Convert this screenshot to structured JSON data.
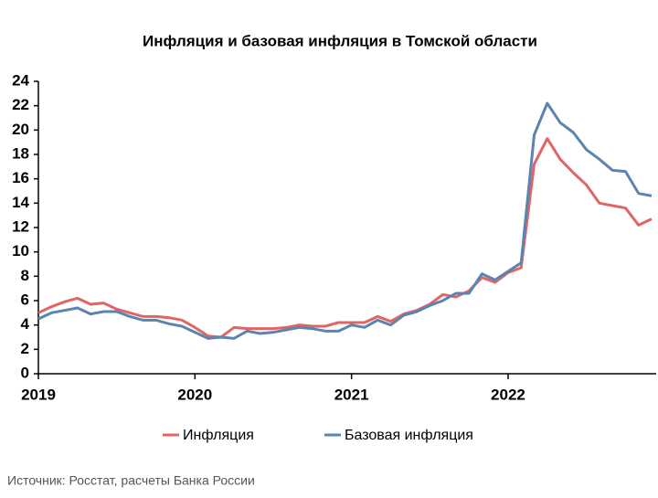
{
  "chart_data": {
    "type": "line",
    "title": "Инфляция и базовая инфляция в Томской области",
    "source": "Источник: Росстат, расчеты Банка России",
    "categories": [
      "2019",
      null,
      null,
      null,
      null,
      null,
      null,
      null,
      null,
      null,
      null,
      null,
      "2020",
      null,
      null,
      null,
      null,
      null,
      null,
      null,
      null,
      null,
      null,
      null,
      "2021",
      null,
      null,
      null,
      null,
      null,
      null,
      null,
      null,
      null,
      null,
      null,
      "2022",
      null,
      null,
      null,
      null,
      null,
      null,
      null,
      null,
      null,
      null,
      null
    ],
    "series": [
      {
        "name": "Инфляция",
        "color": "#e06666",
        "values": [
          5.0,
          5.5,
          5.9,
          6.2,
          5.7,
          5.8,
          5.3,
          5.0,
          4.7,
          4.7,
          4.6,
          4.4,
          3.8,
          3.1,
          3.0,
          3.8,
          3.7,
          3.7,
          3.7,
          3.8,
          4.0,
          3.9,
          3.9,
          4.2,
          4.2,
          4.2,
          4.7,
          4.3,
          4.9,
          5.2,
          5.7,
          6.5,
          6.3,
          6.8,
          7.9,
          7.5,
          8.3,
          8.7,
          17.2,
          19.3,
          17.6,
          16.5,
          15.5,
          14.0,
          13.8,
          13.6,
          12.2,
          12.7
        ]
      },
      {
        "name": "Базовая инфляция",
        "color": "#5b84b1",
        "values": [
          4.5,
          5.0,
          5.2,
          5.4,
          4.9,
          5.1,
          5.1,
          4.7,
          4.4,
          4.4,
          4.1,
          3.9,
          3.4,
          2.9,
          3.0,
          2.9,
          3.5,
          3.3,
          3.4,
          3.6,
          3.8,
          3.7,
          3.5,
          3.5,
          4.0,
          3.8,
          4.4,
          4.0,
          4.8,
          5.1,
          5.6,
          6.0,
          6.6,
          6.6,
          8.2,
          7.7,
          8.4,
          9.1,
          19.6,
          22.2,
          20.6,
          19.8,
          18.4,
          17.6,
          16.7,
          16.6,
          14.8,
          14.6
        ]
      }
    ],
    "ylim": [
      0,
      24
    ],
    "yticks": [
      0,
      2,
      4,
      6,
      8,
      10,
      12,
      14,
      16,
      18,
      20,
      22,
      24
    ],
    "grid": false,
    "legend": "bottom"
  }
}
